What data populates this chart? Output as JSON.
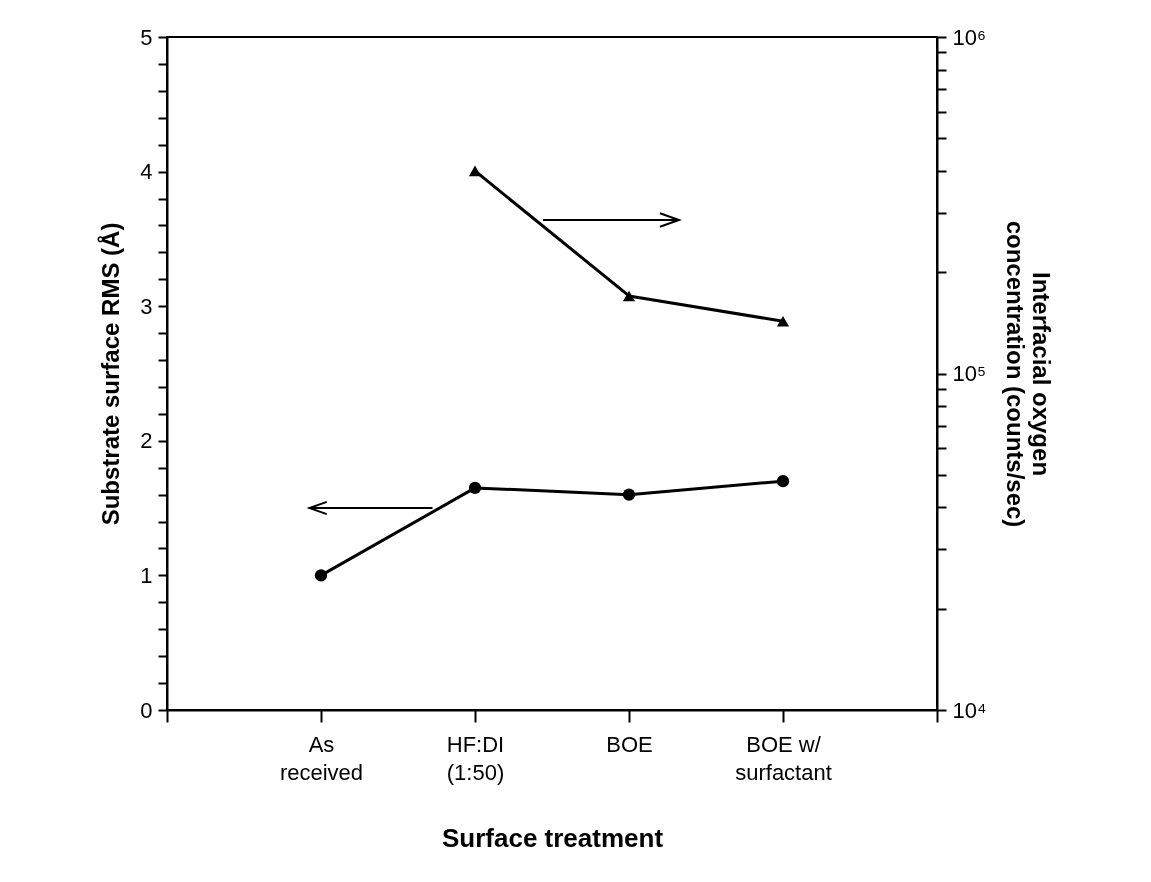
{
  "chart_data": {
    "type": "line",
    "categories": [
      null,
      "As\nreceived",
      "HF:DI\n(1:50)",
      "BOE",
      "BOE w/\nsurfactant",
      null
    ],
    "xlabel": "Surface treatment",
    "ylabel": "Substrate surface RMS (Å)",
    "y2label": "Interfacial oxygen\nconcentration (counts/sec)",
    "series": [
      {
        "color": "#000000",
        "marker": "circle",
        "values": [
          null,
          1.0,
          1.65,
          1.6,
          1.7,
          null
        ]
      },
      {
        "color": "#000000",
        "marker": "triangle",
        "axis": "y2",
        "values": [
          null,
          null,
          400000,
          170000,
          143000,
          null
        ]
      }
    ],
    "ylim": [
      0,
      5
    ],
    "yticks": [
      0,
      {
        "value": 0.2,
        "label": null
      },
      {
        "value": 0.4,
        "label": null
      },
      {
        "value": 0.6,
        "label": null
      },
      {
        "value": 0.8,
        "label": null
      },
      1,
      {
        "value": 1.2,
        "label": null
      },
      {
        "value": 1.4,
        "label": null
      },
      {
        "value": 1.6,
        "label": null
      },
      {
        "value": 1.8,
        "label": null
      },
      2,
      {
        "value": 2.2,
        "label": null
      },
      {
        "value": 2.4,
        "label": null
      },
      {
        "value": 2.6,
        "label": null
      },
      {
        "value": 2.8,
        "label": null
      },
      3,
      {
        "value": 3.2,
        "label": null
      },
      {
        "value": 3.4,
        "label": null
      },
      {
        "value": 3.6,
        "label": null
      },
      {
        "value": 3.8,
        "label": null
      },
      4,
      {
        "value": 4.2,
        "label": null
      },
      {
        "value": 4.4,
        "label": null
      },
      {
        "value": 4.6,
        "label": null
      },
      {
        "value": 4.8,
        "label": null
      },
      5
    ],
    "y2lim": [
      10000,
      1000000
    ],
    "y2ticks": [
      {
        "value": 10000,
        "label": "10⁴"
      },
      {
        "value": 20000,
        "label": null
      },
      {
        "value": 30000,
        "label": null
      },
      {
        "value": 40000,
        "label": null
      },
      {
        "value": 50000,
        "label": null
      },
      {
        "value": 60000,
        "label": null
      },
      {
        "value": 70000,
        "label": null
      },
      {
        "value": 80000,
        "label": null
      },
      {
        "value": 90000,
        "label": null
      },
      {
        "value": 100000,
        "label": "10⁵"
      },
      {
        "value": 200000,
        "label": null
      },
      {
        "value": 300000,
        "label": null
      },
      {
        "value": 400000,
        "label": null
      },
      {
        "value": 500000,
        "label": null
      },
      {
        "value": 600000,
        "label": null
      },
      {
        "value": 700000,
        "label": null
      },
      {
        "value": 800000,
        "label": null
      },
      {
        "value": 900000,
        "label": null
      },
      {
        "value": 1000000,
        "label": "10⁶"
      }
    ],
    "log": "y2",
    "grid": false
  }
}
